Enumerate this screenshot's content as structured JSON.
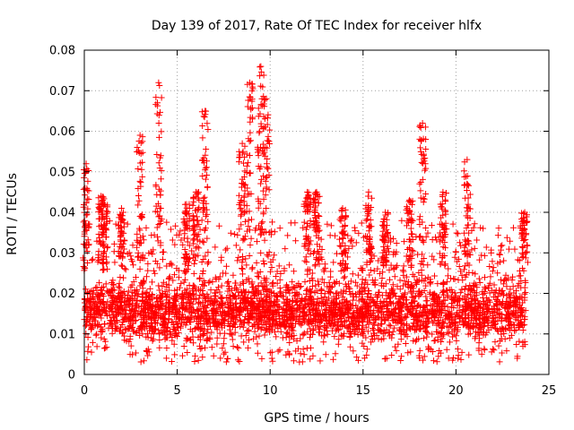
{
  "chart_data": {
    "type": "scatter",
    "title": "Day 139 of 2017, Rate Of TEC Index for receiver hlfx",
    "xlabel": "GPS time / hours",
    "ylabel": "ROTI / TECUs",
    "xlim": [
      0,
      25
    ],
    "ylim": [
      0,
      0.08
    ],
    "x_ticks": [
      "0",
      "5",
      "10",
      "15",
      "20",
      "25"
    ],
    "x_tick_values": [
      0,
      5,
      10,
      15,
      20,
      25
    ],
    "y_ticks": [
      "0",
      "0.01",
      "0.02",
      "0.03",
      "0.04",
      "0.05",
      "0.06",
      "0.07",
      "0.08"
    ],
    "y_tick_values": [
      0,
      0.01,
      0.02,
      0.03,
      0.04,
      0.05,
      0.06,
      0.07,
      0.08
    ],
    "grid": true,
    "marker": "+",
    "series_color": "#ff0000",
    "data_extent_hours": [
      0,
      23.75
    ],
    "baseline_band": [
      0.005,
      0.025
    ],
    "spikes": [
      {
        "x": 0.1,
        "peak": 0.052
      },
      {
        "x": 0.9,
        "peak": 0.044
      },
      {
        "x": 1.1,
        "peak": 0.042
      },
      {
        "x": 2.0,
        "peak": 0.041
      },
      {
        "x": 3.0,
        "peak": 0.059
      },
      {
        "x": 4.0,
        "peak": 0.072
      },
      {
        "x": 5.5,
        "peak": 0.042
      },
      {
        "x": 6.0,
        "peak": 0.045
      },
      {
        "x": 6.5,
        "peak": 0.065
      },
      {
        "x": 8.5,
        "peak": 0.057
      },
      {
        "x": 8.9,
        "peak": 0.072
      },
      {
        "x": 9.5,
        "peak": 0.076
      },
      {
        "x": 9.8,
        "peak": 0.068
      },
      {
        "x": 12.0,
        "peak": 0.045
      },
      {
        "x": 12.5,
        "peak": 0.045
      },
      {
        "x": 13.9,
        "peak": 0.041
      },
      {
        "x": 15.3,
        "peak": 0.045
      },
      {
        "x": 16.2,
        "peak": 0.04
      },
      {
        "x": 17.5,
        "peak": 0.043
      },
      {
        "x": 18.2,
        "peak": 0.062
      },
      {
        "x": 19.3,
        "peak": 0.045
      },
      {
        "x": 20.6,
        "peak": 0.053
      },
      {
        "x": 23.7,
        "peak": 0.04
      }
    ]
  }
}
